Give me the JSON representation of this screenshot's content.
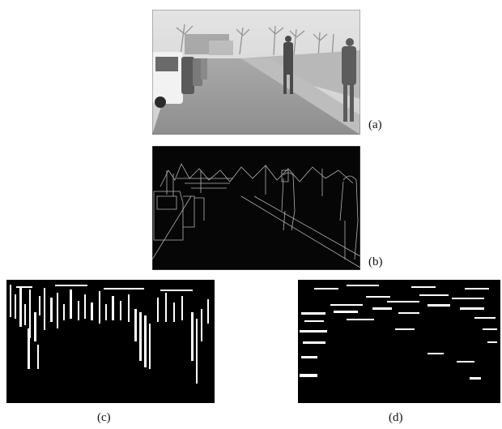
{
  "figure": {
    "panels": [
      {
        "id": "a",
        "label": "(a)",
        "content": "street-scene-photo"
      },
      {
        "id": "b",
        "label": "(b)",
        "content": "edge-map"
      },
      {
        "id": "c",
        "label": "(c)",
        "content": "vertical-edge-binary-map"
      },
      {
        "id": "d",
        "label": "(d)",
        "content": "horizontal-edge-binary-map"
      }
    ]
  }
}
